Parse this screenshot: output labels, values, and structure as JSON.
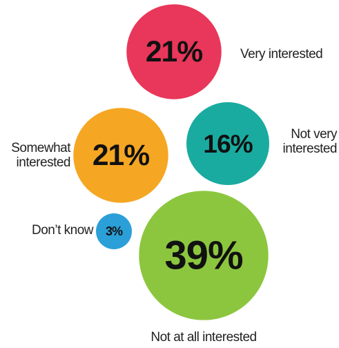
{
  "chart_data": {
    "type": "bubble",
    "categories": [
      "Very interested",
      "Somewhat interested",
      "Not very interested",
      "Don’t know",
      "Not at all interested"
    ],
    "values": [
      21,
      21,
      16,
      3,
      39
    ],
    "value_labels": [
      "21%",
      "21%",
      "16%",
      "3%",
      "39%"
    ],
    "colors": [
      "#e8375a",
      "#f5a623",
      "#1aaba0",
      "#2a9fd8",
      "#8cc63f"
    ]
  }
}
